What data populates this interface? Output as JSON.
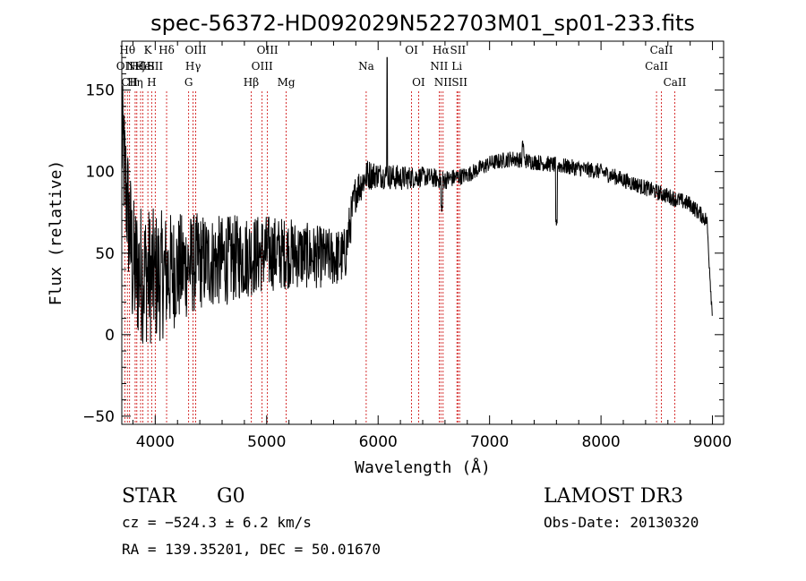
{
  "chart_data": {
    "type": "line",
    "title": "spec-56372-HD092029N522703M01_sp01-233.fits",
    "xlabel": "Wavelength (Å)",
    "ylabel": "Flux (relative)",
    "xlim": [
      3700,
      9100
    ],
    "ylim": [
      -55,
      180
    ],
    "xticks": [
      4000,
      5000,
      6000,
      7000,
      8000,
      9000
    ],
    "yticks": [
      -50,
      0,
      50,
      100,
      150
    ],
    "spectrum_anchors": {
      "x": [
        3700,
        3800,
        4000,
        4200,
        4400,
        4600,
        4800,
        5000,
        5200,
        5400,
        5600,
        5700,
        5800,
        5900,
        6000,
        6200,
        6400,
        6600,
        6800,
        7000,
        7200,
        7400,
        7600,
        7800,
        8000,
        8200,
        8400,
        8600,
        8800,
        8950,
        9000
      ],
      "y": [
        120,
        40,
        35,
        40,
        45,
        45,
        48,
        50,
        50,
        48,
        47,
        48,
        88,
        98,
        98,
        96,
        97,
        95,
        98,
        105,
        108,
        106,
        104,
        102,
        100,
        95,
        90,
        85,
        80,
        70,
        10
      ],
      "noise_amplitude": [
        40,
        45,
        42,
        35,
        30,
        28,
        26,
        24,
        22,
        20,
        18,
        18,
        12,
        10,
        8,
        8,
        6,
        6,
        5,
        5,
        5,
        5,
        5,
        5,
        5,
        5,
        5,
        5,
        5,
        5,
        5
      ]
    },
    "features": [
      {
        "x": 6080,
        "y": 170,
        "label": "spike"
      },
      {
        "x": 6570,
        "y": 78,
        "label": "H-alpha absorption"
      },
      {
        "x": 7600,
        "y": 68,
        "label": "telluric absorption"
      },
      {
        "x": 7300,
        "y": 117,
        "label": "peak"
      }
    ],
    "line_markers": [
      {
        "wave": 3727,
        "label": "OII",
        "row": 1
      },
      {
        "wave": 3750,
        "label": "Hθ",
        "row": 0
      },
      {
        "wave": 3770,
        "label": "CII",
        "row": 2
      },
      {
        "wave": 3820,
        "label": "Hη",
        "row": 2
      },
      {
        "wave": 3835,
        "label": "Hζ",
        "row": 1
      },
      {
        "wave": 3869,
        "label": "NeIII",
        "row": 1
      },
      {
        "wave": 3889,
        "label": "He",
        "row": 1
      },
      {
        "wave": 3934,
        "label": "K",
        "row": 0
      },
      {
        "wave": 3968,
        "label": "H",
        "row": 2
      },
      {
        "wave": 4000,
        "label": "SII",
        "row": 1
      },
      {
        "wave": 4102,
        "label": "Hδ",
        "row": 0
      },
      {
        "wave": 4300,
        "label": "G",
        "row": 2
      },
      {
        "wave": 4340,
        "label": "Hγ",
        "row": 1
      },
      {
        "wave": 4363,
        "label": "OIII",
        "row": 0
      },
      {
        "wave": 4861,
        "label": "Hβ",
        "row": 2
      },
      {
        "wave": 4959,
        "label": "OIII",
        "row": 1
      },
      {
        "wave": 5007,
        "label": "OIII",
        "row": 0
      },
      {
        "wave": 5175,
        "label": "Mg",
        "row": 2
      },
      {
        "wave": 5893,
        "label": "Na",
        "row": 1
      },
      {
        "wave": 6300,
        "label": "OI",
        "row": 0
      },
      {
        "wave": 6363,
        "label": "OI",
        "row": 2
      },
      {
        "wave": 6548,
        "label": "NII",
        "row": 1
      },
      {
        "wave": 6563,
        "label": "Hα",
        "row": 0
      },
      {
        "wave": 6583,
        "label": "NII",
        "row": 2
      },
      {
        "wave": 6707,
        "label": "Li",
        "row": 1
      },
      {
        "wave": 6716,
        "label": "SII",
        "row": 0
      },
      {
        "wave": 6731,
        "label": "SII",
        "row": 2
      },
      {
        "wave": 8498,
        "label": "CaII",
        "row": 1
      },
      {
        "wave": 8542,
        "label": "CaII",
        "row": 0
      },
      {
        "wave": 8662,
        "label": "CaII",
        "row": 2
      }
    ]
  },
  "info": {
    "object_class": "STAR",
    "subclass": "G0",
    "cz": "cz = −524.3 ± 6.2 km/s",
    "coords": "RA = 139.35201, DEC =  50.01670",
    "survey": "LAMOST DR3",
    "obs_date": "Obs-Date: 20130320"
  },
  "colors": {
    "spectrum": "#000000",
    "marker": "#cc0000"
  }
}
